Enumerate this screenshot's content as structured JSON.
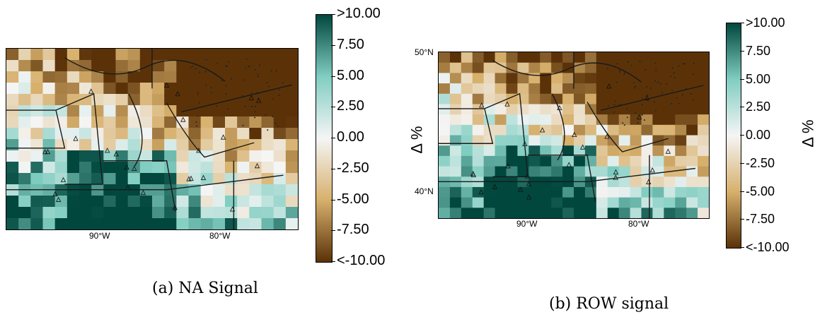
{
  "colors": {
    "brown_dark": "#5b3208",
    "tan": "#d7b06c",
    "white": "#f5f5f5",
    "teal_light": "#80cdc1",
    "teal_dark": "#01473e"
  },
  "colorbar_ticks": [
    ">10.00",
    "7.50",
    "5.00",
    "2.50",
    "0.00",
    "-2.50",
    "-5.00",
    "-7.50",
    "<-10.00"
  ],
  "unit_label": "Δ %",
  "panels": [
    {
      "caption": "(a) NA Signal",
      "lon_labels": [
        "90°W",
        "80°W"
      ],
      "lat_labels": []
    },
    {
      "caption": "(b) ROW signal",
      "lon_labels": [
        "90°W",
        "80°W"
      ],
      "lat_labels": [
        "50°N",
        "40°N"
      ]
    }
  ]
}
